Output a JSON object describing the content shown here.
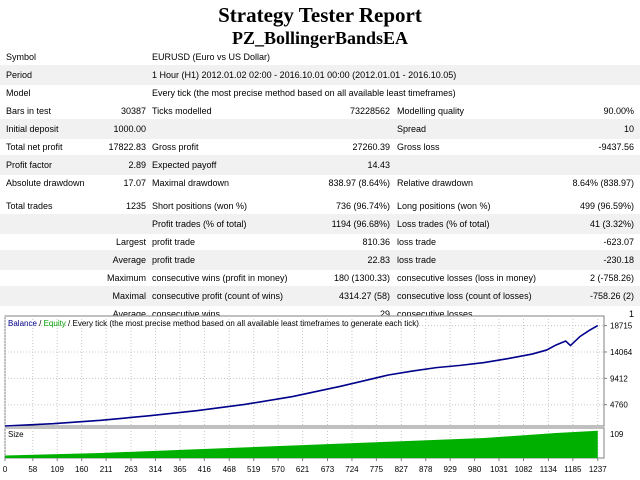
{
  "report": {
    "title": "Strategy Tester Report",
    "subtitle": "PZ_BollingerBandsEA",
    "rows": [
      {
        "label": "Symbol",
        "value": "EURUSD (Euro vs US Dollar)"
      },
      {
        "label": "Period",
        "value": "1 Hour (H1) 2012.01.02 02:00 - 2016.10.01 00:00 (2012.01.01 - 2016.10.05)"
      },
      {
        "label": "Model",
        "value": "Every tick (the most precise method based on all available least timeframes)"
      }
    ],
    "stats": [
      {
        "l1": "Bars in test",
        "v1": "30387",
        "l2": "Ticks modelled",
        "v2": "73228562",
        "l3": "Modelling quality",
        "v3": "90.00%"
      },
      {
        "l1": "Initial deposit",
        "v1": "1000.00",
        "l2": "",
        "v2": "",
        "l3": "Spread",
        "v3": "10"
      },
      {
        "l1": "Total net profit",
        "v1": "17822.83",
        "l2": "Gross profit",
        "v2": "27260.39",
        "l3": "Gross loss",
        "v3": "-9437.56"
      },
      {
        "l1": "Profit factor",
        "v1": "2.89",
        "l2": "Expected payoff",
        "v2": "14.43",
        "l3": "",
        "v3": ""
      },
      {
        "l1": "Absolute drawdown",
        "v1": "17.07",
        "l2": "Maximal drawdown",
        "v2": "838.97 (8.64%)",
        "l3": "Relative drawdown",
        "v3": "8.64% (838.97)"
      }
    ],
    "trades": [
      {
        "l1": "Total trades",
        "v1": "1235",
        "l2": "Short positions (won %)",
        "v2": "736 (96.74%)",
        "l3": "Long positions (won %)",
        "v3": "499 (96.59%)"
      },
      {
        "l1": "",
        "v1": "",
        "l2": "Profit trades (% of total)",
        "v2": "1194 (96.68%)",
        "l3": "Loss trades (% of total)",
        "v3": "41 (3.32%)"
      },
      {
        "l1": "",
        "v1": "Largest",
        "l2": "profit trade",
        "v2": "810.36",
        "l3": "loss trade",
        "v3": "-623.07"
      },
      {
        "l1": "",
        "v1": "Average",
        "l2": "profit trade",
        "v2": "22.83",
        "l3": "loss trade",
        "v3": "-230.18"
      },
      {
        "l1": "",
        "v1": "Maximum",
        "l2": "consecutive wins (profit in money)",
        "v2": "180 (1300.33)",
        "l3": "consecutive losses (loss in money)",
        "v3": "2 (-758.26)"
      },
      {
        "l1": "",
        "v1": "Maximal",
        "l2": "consecutive profit (count of wins)",
        "v2": "4314.27 (58)",
        "l3": "consecutive loss (count of losses)",
        "v3": "-758.26 (2)"
      },
      {
        "l1": "",
        "v1": "Average",
        "l2": "consecutive wins",
        "v2": "29",
        "l3": "consecutive losses",
        "v3": "1"
      }
    ]
  },
  "chart": {
    "legend_balance": "Balance",
    "legend_sep1": " / ",
    "legend_equity": "Equity",
    "legend_rest": " / Every tick (the most precise method based on all available least timeframes to generate each tick)",
    "size_label": "Size",
    "colors": {
      "balance": "#00008b",
      "equity": "#00a000",
      "size": "#00b000",
      "grid": "#c8c8c8"
    }
  },
  "chart_data": {
    "type": "line",
    "x_ticks": [
      0,
      58,
      109,
      160,
      211,
      263,
      314,
      365,
      416,
      468,
      519,
      570,
      621,
      673,
      724,
      775,
      827,
      878,
      929,
      980,
      1031,
      1082,
      1134,
      1185,
      1237
    ],
    "y_ticks": [
      4760,
      9412,
      14064,
      18715
    ],
    "size_ticks": [
      109
    ],
    "ylim": [
      1000,
      19000
    ],
    "xlim": [
      0,
      1250
    ],
    "series": [
      {
        "name": "Balance",
        "x": [
          0,
          100,
          200,
          300,
          400,
          500,
          600,
          650,
          700,
          750,
          800,
          850,
          900,
          950,
          1000,
          1050,
          1100,
          1130,
          1150,
          1170,
          1180,
          1200,
          1220,
          1237
        ],
        "y": [
          1000,
          1400,
          2000,
          2800,
          3700,
          4800,
          6200,
          7100,
          8000,
          9000,
          10000,
          10700,
          11300,
          11700,
          12200,
          12900,
          13700,
          14400,
          15300,
          16000,
          15200,
          16800,
          17900,
          18715
        ]
      }
    ],
    "size_series": {
      "x": [
        0,
        200,
        400,
        600,
        800,
        1000,
        1150,
        1237
      ],
      "y": [
        10,
        20,
        35,
        50,
        65,
        80,
        100,
        109
      ]
    }
  }
}
